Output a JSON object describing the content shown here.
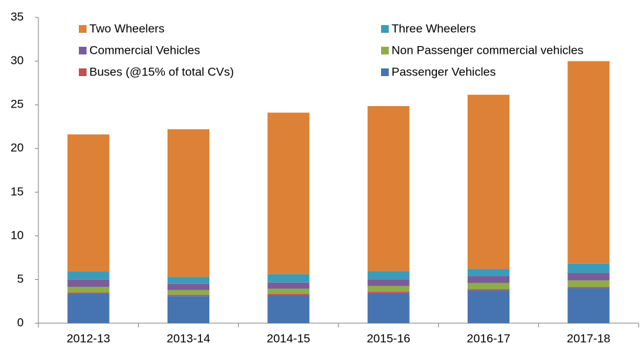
{
  "chart_data": {
    "type": "stacked_bar",
    "categories": [
      "2012-13",
      "2013-14",
      "2014-15",
      "2015-16",
      "2016-17",
      "2017-18"
    ],
    "series": [
      {
        "name": "Two Wheelers",
        "color": "#dc8136",
        "values": [
          15.7,
          16.9,
          18.5,
          18.9,
          19.95,
          23.2
        ]
      },
      {
        "name": "Three Wheelers",
        "color": "#3b9cb9",
        "values": [
          0.95,
          0.8,
          0.95,
          0.95,
          0.8,
          1.05
        ]
      },
      {
        "name": "Commercial Vehicles",
        "color": "#7b5c9a",
        "values": [
          0.8,
          0.7,
          0.7,
          0.75,
          0.8,
          0.85
        ]
      },
      {
        "name": "Non Passenger commercial vehicles",
        "color": "#8cae4a",
        "values": [
          0.65,
          0.55,
          0.6,
          0.65,
          0.7,
          0.75
        ]
      },
      {
        "name": "Buses (@15% of total CVs)",
        "color": "#c0504d",
        "values": [
          0.15,
          0.15,
          0.15,
          0.15,
          0.15,
          0.15
        ]
      },
      {
        "name": "Passenger Vehicles",
        "color": "#4674b0",
        "values": [
          3.36,
          3.1,
          3.2,
          3.45,
          3.75,
          4.0
        ]
      }
    ],
    "ylim": [
      0,
      35
    ],
    "yticks": [
      0,
      5,
      10,
      15,
      20,
      25,
      30,
      35
    ],
    "grid": false
  }
}
